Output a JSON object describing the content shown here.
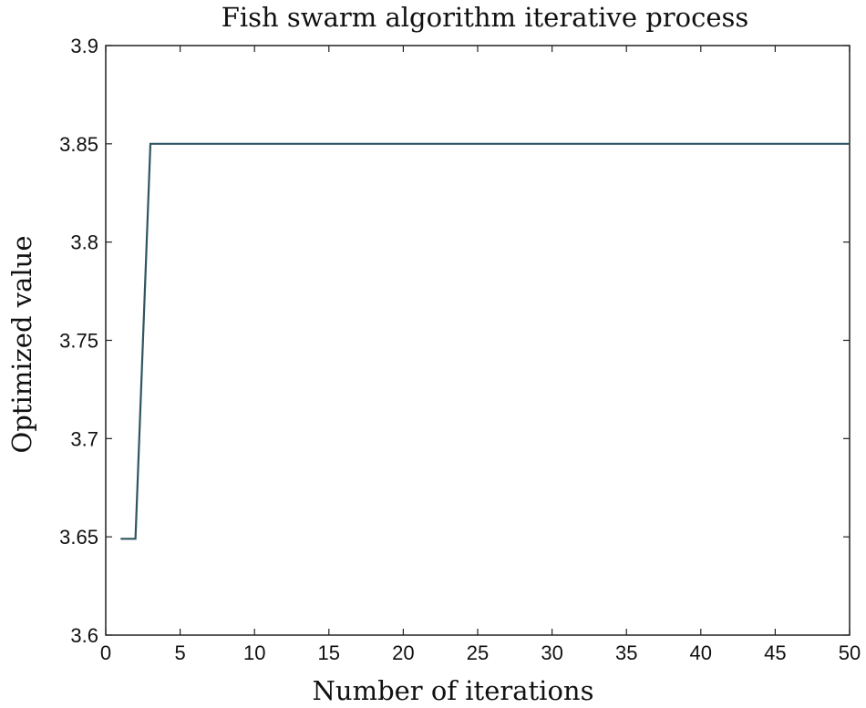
{
  "chart_data": {
    "type": "line",
    "title": "Fish swarm algorithm iterative process",
    "xlabel": "Number of iterations",
    "ylabel": "Optimized value",
    "xlim": [
      0,
      50
    ],
    "ylim": [
      3.6,
      3.9
    ],
    "xticks": [
      "0",
      "5",
      "10",
      "15",
      "20",
      "25",
      "30",
      "35",
      "40",
      "45",
      "50"
    ],
    "yticks": [
      "3.6",
      "3.65",
      "3.7",
      "3.75",
      "3.8",
      "3.85",
      "3.9"
    ],
    "grid": false,
    "series": [
      {
        "color": "#2e5560",
        "x": [
          1,
          2,
          3,
          50
        ],
        "y": [
          3.649,
          3.649,
          3.85,
          3.85
        ]
      }
    ]
  }
}
